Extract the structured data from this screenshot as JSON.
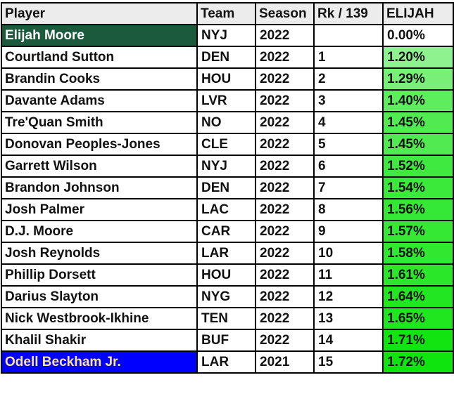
{
  "table": {
    "headers": [
      "Player",
      "Team",
      "Season",
      "Rk / 139",
      "ELIJAH"
    ],
    "rows": [
      {
        "player": "Elijah Moore",
        "team": "NYJ",
        "season": "2022",
        "rank": "",
        "value": "0.00%",
        "pct": 0.0,
        "style": "self"
      },
      {
        "player": "Courtland Sutton",
        "team": "DEN",
        "season": "2022",
        "rank": "1",
        "value": "1.20%",
        "pct": 1.2,
        "style": ""
      },
      {
        "player": "Brandin Cooks",
        "team": "HOU",
        "season": "2022",
        "rank": "2",
        "value": "1.29%",
        "pct": 1.29,
        "style": ""
      },
      {
        "player": "Davante Adams",
        "team": "LVR",
        "season": "2022",
        "rank": "3",
        "value": "1.40%",
        "pct": 1.4,
        "style": ""
      },
      {
        "player": "Tre'Quan Smith",
        "team": "NO",
        "season": "2022",
        "rank": "4",
        "value": "1.45%",
        "pct": 1.45,
        "style": ""
      },
      {
        "player": "Donovan Peoples-Jones",
        "team": "CLE",
        "season": "2022",
        "rank": "5",
        "value": "1.45%",
        "pct": 1.45,
        "style": ""
      },
      {
        "player": "Garrett Wilson",
        "team": "NYJ",
        "season": "2022",
        "rank": "6",
        "value": "1.52%",
        "pct": 1.52,
        "style": ""
      },
      {
        "player": "Brandon Johnson",
        "team": "DEN",
        "season": "2022",
        "rank": "7",
        "value": "1.54%",
        "pct": 1.54,
        "style": ""
      },
      {
        "player": "Josh Palmer",
        "team": "LAC",
        "season": "2022",
        "rank": "8",
        "value": "1.56%",
        "pct": 1.56,
        "style": ""
      },
      {
        "player": "D.J. Moore",
        "team": "CAR",
        "season": "2022",
        "rank": "9",
        "value": "1.57%",
        "pct": 1.57,
        "style": ""
      },
      {
        "player": "Josh Reynolds",
        "team": "LAR",
        "season": "2022",
        "rank": "10",
        "value": "1.58%",
        "pct": 1.58,
        "style": ""
      },
      {
        "player": "Phillip Dorsett",
        "team": "HOU",
        "season": "2022",
        "rank": "11",
        "value": "1.61%",
        "pct": 1.61,
        "style": ""
      },
      {
        "player": "Darius Slayton",
        "team": "NYG",
        "season": "2022",
        "rank": "12",
        "value": "1.64%",
        "pct": 1.64,
        "style": ""
      },
      {
        "player": "Nick Westbrook-Ikhine",
        "team": "TEN",
        "season": "2022",
        "rank": "13",
        "value": "1.65%",
        "pct": 1.65,
        "style": ""
      },
      {
        "player": "Khalil Shakir",
        "team": "BUF",
        "season": "2022",
        "rank": "14",
        "value": "1.71%",
        "pct": 1.71,
        "style": ""
      },
      {
        "player": "Odell Beckham Jr.",
        "team": "LAR",
        "season": "2021",
        "rank": "15",
        "value": "1.72%",
        "pct": 1.72,
        "style": "highlight"
      }
    ]
  },
  "colors": {
    "self_row_bg": "#1c5a3c",
    "highlight_row_bg": "#0000ff",
    "highlight_row_text": "#ffe680",
    "value_low": "#8ef28e",
    "value_high": "#0fe40f",
    "header_bg": "#ececec"
  }
}
